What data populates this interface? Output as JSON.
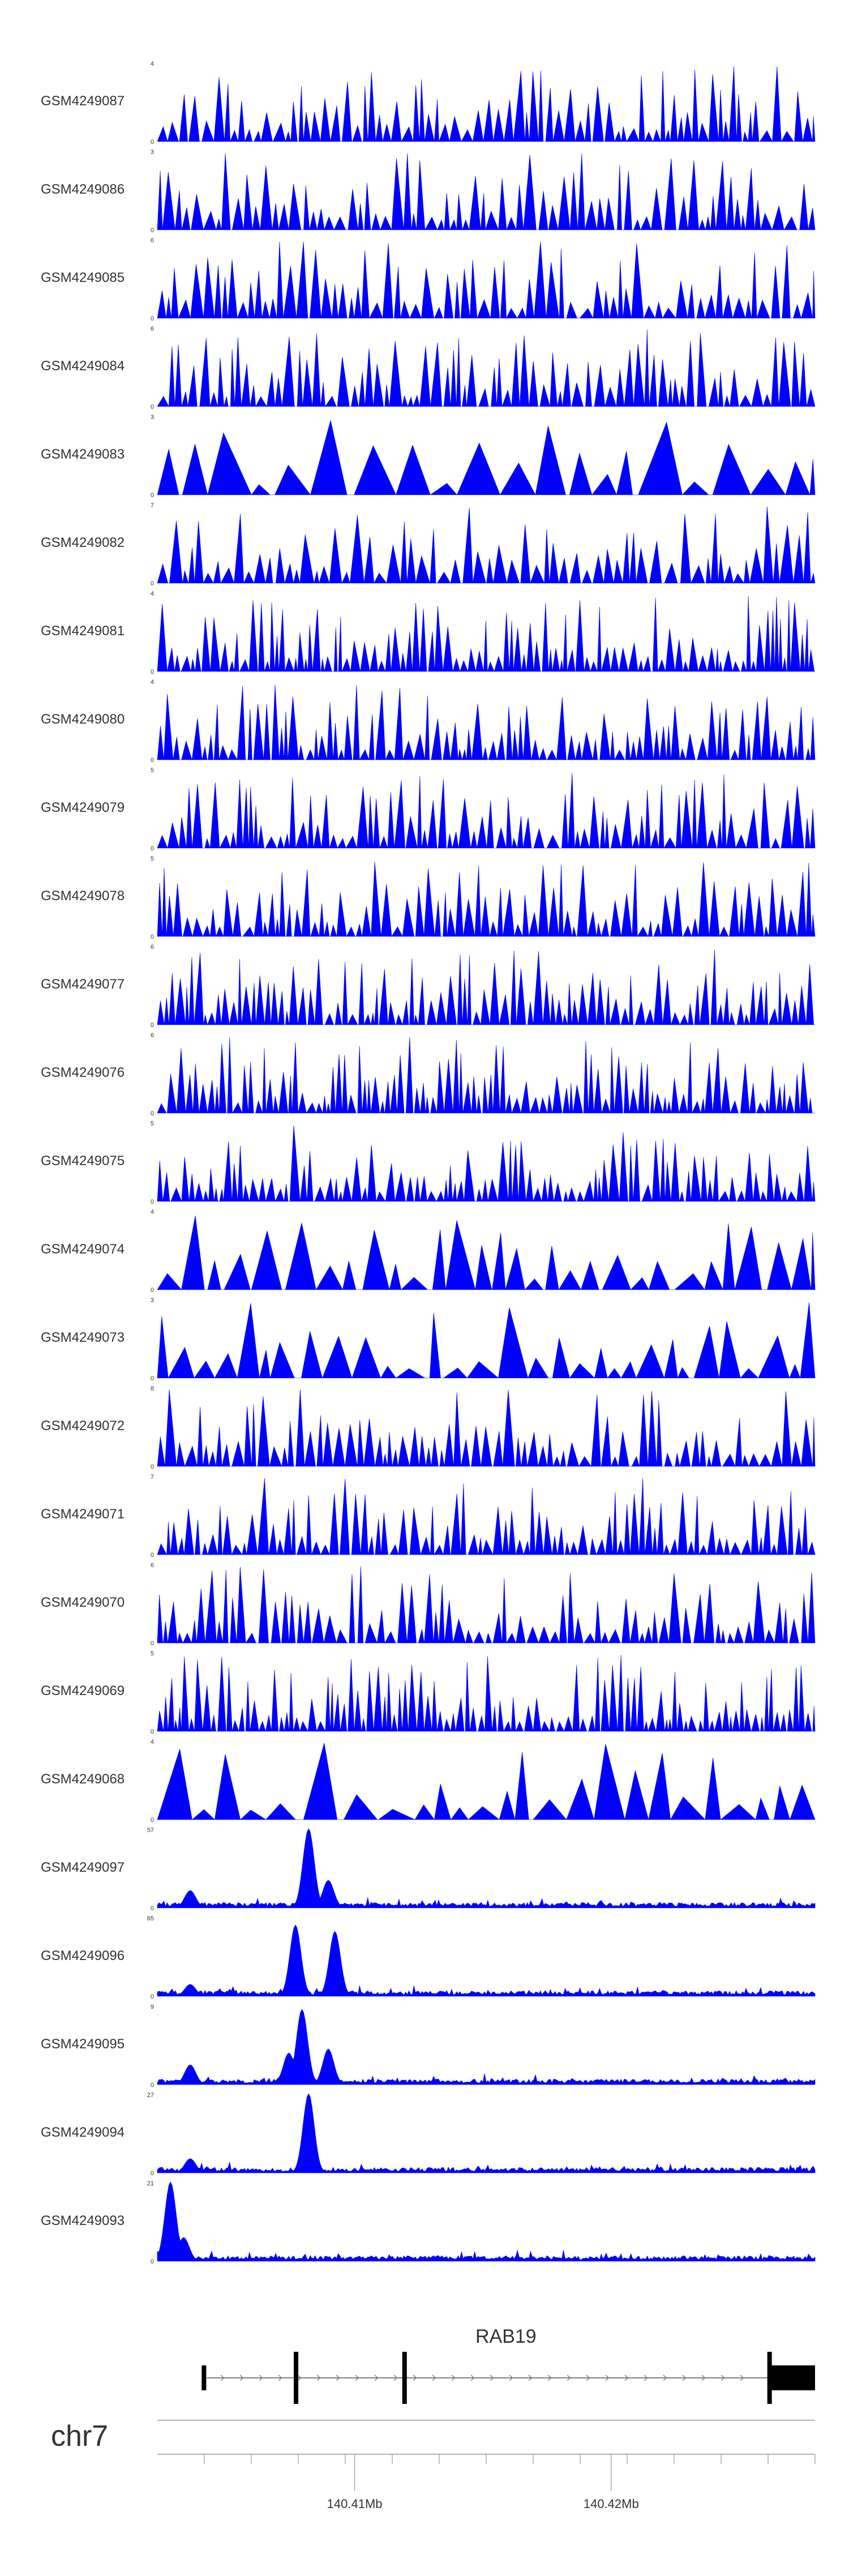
{
  "chart_data": {
    "type": "area",
    "color": "#0000ff",
    "tracks": [
      {
        "name": "GSM4249087",
        "ymax": "4",
        "ymin": "0",
        "kind": "sparse",
        "peaks": 70
      },
      {
        "name": "GSM4249086",
        "ymax": "3",
        "ymin": "0",
        "kind": "sparse",
        "peaks": 68
      },
      {
        "name": "GSM4249085",
        "ymax": "6",
        "ymin": "0",
        "kind": "sparse",
        "peaks": 66
      },
      {
        "name": "GSM4249084",
        "ymax": "6",
        "ymin": "0",
        "kind": "sparse",
        "peaks": 70
      },
      {
        "name": "GSM4249083",
        "ymax": "3",
        "ymin": "0",
        "kind": "sparse",
        "peaks": 20
      },
      {
        "name": "GSM4249082",
        "ymax": "7",
        "ymin": "0",
        "kind": "sparse",
        "peaks": 62
      },
      {
        "name": "GSM4249081",
        "ymax": "4",
        "ymin": "0",
        "kind": "sparse",
        "peaks": 90
      },
      {
        "name": "GSM4249080",
        "ymax": "4",
        "ymin": "0",
        "kind": "sparse",
        "peaks": 80
      },
      {
        "name": "GSM4249079",
        "ymax": "5",
        "ymin": "0",
        "kind": "sparse",
        "peaks": 72
      },
      {
        "name": "GSM4249078",
        "ymax": "5",
        "ymin": "0",
        "kind": "sparse",
        "peaks": 76
      },
      {
        "name": "GSM4249077",
        "ymax": "6",
        "ymin": "0",
        "kind": "sparse",
        "peaks": 86
      },
      {
        "name": "GSM4249076",
        "ymax": "6",
        "ymin": "0",
        "kind": "sparse",
        "peaks": 90
      },
      {
        "name": "GSM4249075",
        "ymax": "5",
        "ymin": "0",
        "kind": "sparse",
        "peaks": 82
      },
      {
        "name": "GSM4249074",
        "ymax": "4",
        "ymin": "0",
        "kind": "sparse",
        "peaks": 28
      },
      {
        "name": "GSM4249073",
        "ymax": "3",
        "ymin": "0",
        "kind": "sparse",
        "peaks": 28
      },
      {
        "name": "GSM4249072",
        "ymax": "8",
        "ymin": "0",
        "kind": "sparse",
        "peaks": 70
      },
      {
        "name": "GSM4249071",
        "ymax": "7",
        "ymin": "0",
        "kind": "sparse",
        "peaks": 80
      },
      {
        "name": "GSM4249070",
        "ymax": "6",
        "ymin": "0",
        "kind": "sparse",
        "peaks": 70
      },
      {
        "name": "GSM4249069",
        "ymax": "5",
        "ymin": "0",
        "kind": "sparse",
        "peaks": 100
      },
      {
        "name": "GSM4249068",
        "ymax": "4",
        "ymin": "0",
        "kind": "sparse",
        "peaks": 24
      },
      {
        "name": "GSM4249097",
        "ymax": "57",
        "ymin": "0",
        "kind": "dense",
        "profile": [
          [
            0.05,
            0.22
          ],
          [
            0.23,
            1.0
          ],
          [
            0.26,
            0.35
          ]
        ]
      },
      {
        "name": "GSM4249096",
        "ymax": "65",
        "ymin": "0",
        "kind": "dense",
        "profile": [
          [
            0.05,
            0.15
          ],
          [
            0.21,
            0.9
          ],
          [
            0.27,
            0.82
          ]
        ]
      },
      {
        "name": "GSM4249095",
        "ymax": "9",
        "ymin": "0",
        "kind": "dense",
        "profile": [
          [
            0.05,
            0.25
          ],
          [
            0.2,
            0.4
          ],
          [
            0.22,
            0.95
          ],
          [
            0.26,
            0.45
          ]
        ]
      },
      {
        "name": "GSM4249094",
        "ymax": "27",
        "ymin": "0",
        "kind": "dense",
        "profile": [
          [
            0.05,
            0.18
          ],
          [
            0.23,
            1.0
          ]
        ]
      },
      {
        "name": "GSM4249093",
        "ymax": "21",
        "ymin": "0",
        "kind": "dense",
        "profile": [
          [
            0.02,
            1.0
          ],
          [
            0.04,
            0.3
          ]
        ]
      }
    ],
    "gene": {
      "name": "RAB19",
      "exons": [
        0.07,
        0.21,
        0.375,
        0.93
      ],
      "utr_end": [
        0.93,
        1.0
      ]
    },
    "chromosome": "chr7",
    "ticks": [
      {
        "label": "140.41Mb",
        "pos": 0.3
      },
      {
        "label": "140.42Mb",
        "pos": 0.69
      }
    ]
  }
}
